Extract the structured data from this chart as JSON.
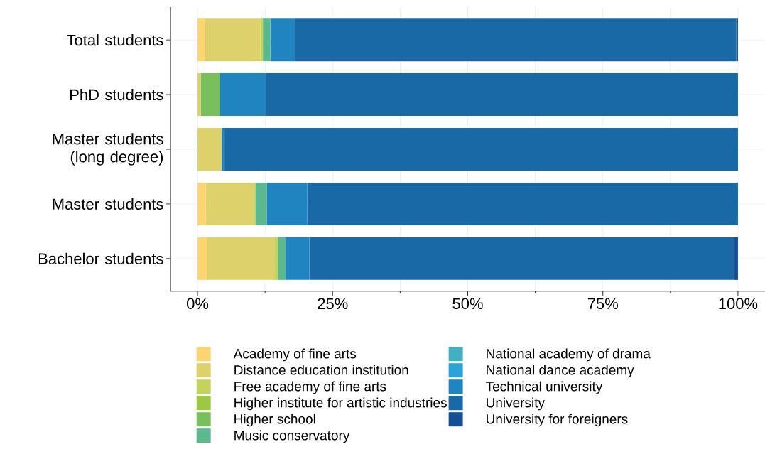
{
  "chart_data": {
    "type": "bar",
    "orientation": "horizontal",
    "stacked": true,
    "categories": [
      "Total students",
      "PhD students",
      "Master students (long degree)",
      "Master students",
      "Bachelor students"
    ],
    "series": [
      {
        "name": "Academy of fine arts",
        "color": "#fdd472",
        "values": [
          1.4,
          0,
          0,
          1.5,
          1.7
        ]
      },
      {
        "name": "Distance education institution",
        "color": "#dcd16b",
        "values": [
          10.2,
          0.6,
          4.5,
          9.0,
          12.5
        ]
      },
      {
        "name": "Free academy of fine arts",
        "color": "#c3d45c",
        "values": [
          0.5,
          0,
          0,
          0.2,
          0.7
        ]
      },
      {
        "name": "Higher institute for artistic industries",
        "color": "#9dc942",
        "values": [
          0,
          0,
          0,
          0,
          0
        ]
      },
      {
        "name": "Higher school",
        "color": "#7abf5e",
        "values": [
          0,
          3.6,
          0,
          0,
          0
        ]
      },
      {
        "name": "Music conservatory",
        "color": "#5cb88f",
        "values": [
          1.4,
          0,
          0,
          2.1,
          1.4
        ]
      },
      {
        "name": "National academy of drama",
        "color": "#42b0c0",
        "values": [
          0,
          0,
          0,
          0,
          0
        ]
      },
      {
        "name": "National dance academy",
        "color": "#2aa3d9",
        "values": [
          0,
          0,
          0,
          0,
          0
        ]
      },
      {
        "name": "Technical university",
        "color": "#1f84bf",
        "values": [
          4.6,
          8.5,
          0.5,
          7.5,
          4.4
        ]
      },
      {
        "name": "University",
        "color": "#1a69a7",
        "values": [
          81.6,
          87.3,
          95.0,
          79.7,
          78.6
        ]
      },
      {
        "name": "University for foreigners",
        "color": "#154e92",
        "values": [
          0.3,
          0,
          0,
          0,
          0.7
        ]
      }
    ],
    "xlim": [
      -5,
      105
    ],
    "xticks": [
      {
        "value": 0,
        "label": "0%"
      },
      {
        "value": 25,
        "label": "25%"
      },
      {
        "value": 50,
        "label": "50%"
      },
      {
        "value": 75,
        "label": "75%"
      },
      {
        "value": 100,
        "label": "100%"
      }
    ],
    "grid": true,
    "legend": "bottom"
  }
}
